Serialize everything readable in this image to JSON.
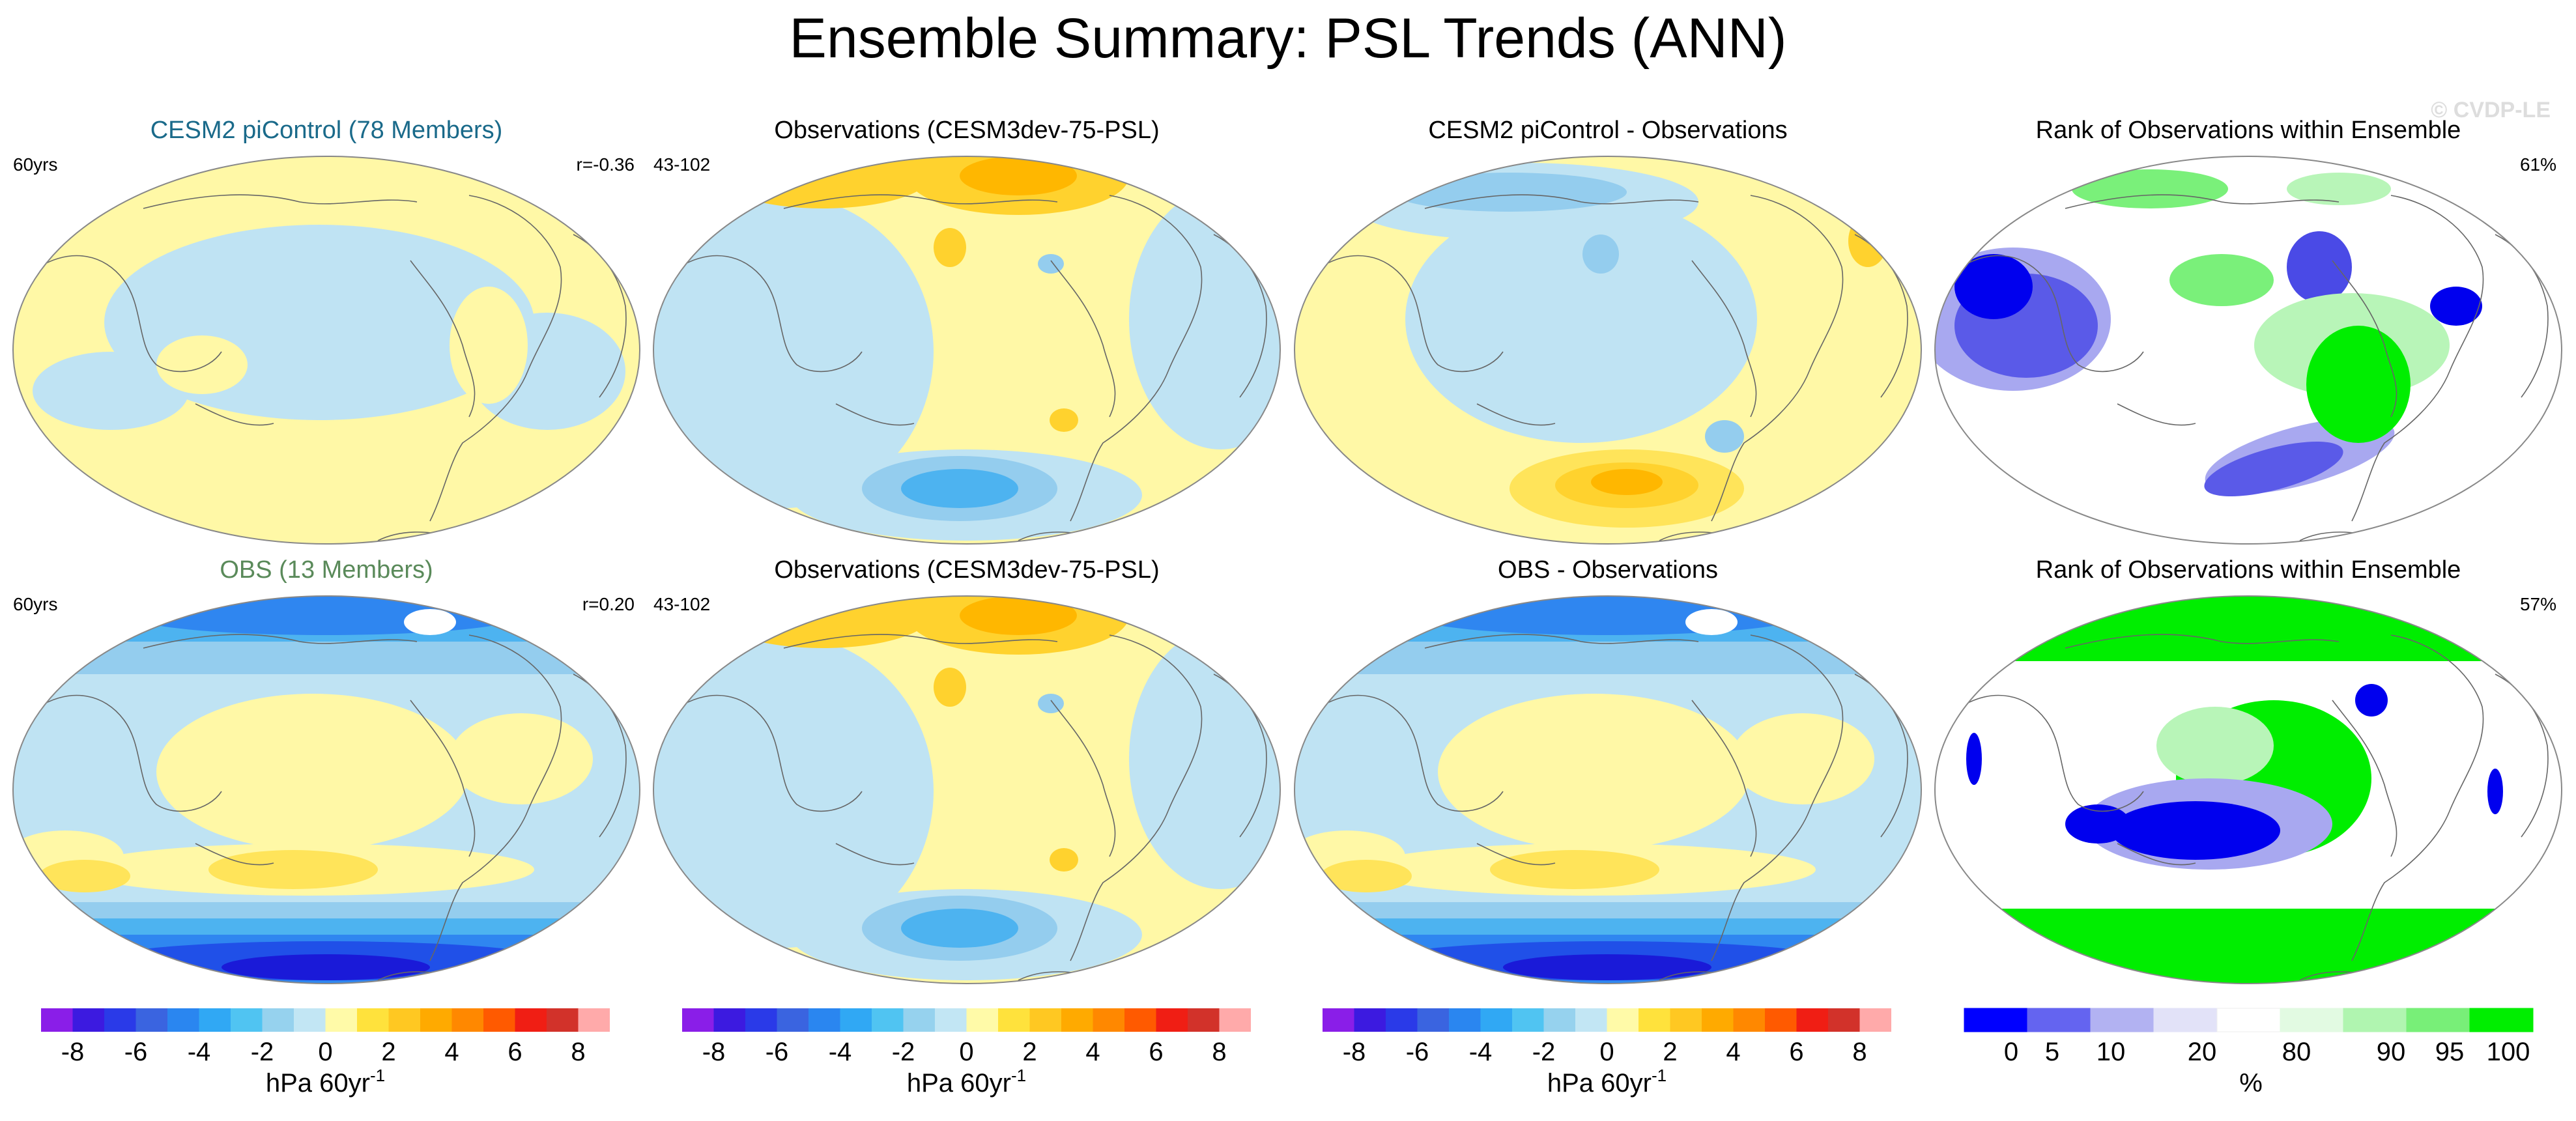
{
  "title": "Ensemble Summary: PSL Trends (ANN)",
  "watermark": "© CVDP-LE",
  "colors": {
    "pos1": "#fff8a6",
    "pos2": "#ffe45a",
    "pos3": "#ffd22e",
    "pos4": "#ffb700",
    "neg1": "#bfe3f3",
    "neg2": "#94cdee",
    "neg3": "#4db3f0",
    "neg4": "#2f86f0",
    "neg5": "#2050e8",
    "neg6": "#1a1ad8",
    "green_strong": "#00ee00",
    "green_light": "#b8f5b8",
    "blue_strong": "#0000ee",
    "blue_light": "#a8a8f0",
    "title_blue": "#1a6a8a",
    "title_green": "#5a8a5a",
    "land_outline": "#666666"
  },
  "panels": [
    {
      "id": "r1c1",
      "title": "CESM2 piControl (78 Members)",
      "title_color": "blue",
      "left_label": "60yrs",
      "right_label": "r=-0.36",
      "kind": "trend",
      "variant": "model_mean"
    },
    {
      "id": "r1c2",
      "title": "Observations (CESM3dev-75-PSL)",
      "left_label": "43-102",
      "right_label": "",
      "kind": "trend",
      "variant": "obs"
    },
    {
      "id": "r1c3",
      "title": "CESM2 piControl - Observations",
      "left_label": "",
      "right_label": "",
      "kind": "trend",
      "variant": "diff1"
    },
    {
      "id": "r1c4",
      "title": "Rank of Observations within Ensemble",
      "left_label": "",
      "right_label": "61%",
      "kind": "rank",
      "variant": "rank1"
    },
    {
      "id": "r2c1",
      "title": "OBS (13 Members)",
      "title_color": "green",
      "left_label": "60yrs",
      "right_label": "r=0.20",
      "kind": "trend",
      "variant": "obs_ens"
    },
    {
      "id": "r2c2",
      "title": "Observations (CESM3dev-75-PSL)",
      "left_label": "43-102",
      "right_label": "",
      "kind": "trend",
      "variant": "obs"
    },
    {
      "id": "r2c3",
      "title": "OBS - Observations",
      "left_label": "",
      "right_label": "",
      "kind": "trend",
      "variant": "diff2"
    },
    {
      "id": "r2c4",
      "title": "Rank of Observations within Ensemble",
      "left_label": "",
      "right_label": "57%",
      "kind": "rank",
      "variant": "rank2"
    }
  ],
  "trend_colorbar": {
    "colors": [
      "#8a1ee8",
      "#3c1ae0",
      "#2a3ae8",
      "#3a64e0",
      "#2a86f0",
      "#30a8f4",
      "#50c4f2",
      "#96d2ee",
      "#c2e6f4",
      "#fffaa8",
      "#ffe23c",
      "#ffc822",
      "#ffaa00",
      "#ff8800",
      "#ff5a00",
      "#f01e14",
      "#d2322a",
      "#ffaaaa"
    ],
    "tick_labels": [
      "-8",
      "-6",
      "-4",
      "-2",
      "0",
      "2",
      "4",
      "6",
      "8"
    ],
    "unit": "hPa 60yr",
    "unit_sup": "-1"
  },
  "rank_colorbar": {
    "colors": [
      "#0000ff",
      "#6464f0",
      "#b2b2f2",
      "#e2e2f8",
      "#ffffff",
      "#e2fae2",
      "#b0f5b0",
      "#78ef78",
      "#00ee00"
    ],
    "tick_labels": [
      "0",
      "5",
      "10",
      "20",
      "80",
      "90",
      "95",
      "100"
    ],
    "unit": "%"
  },
  "chart_data": [
    {
      "type": "heatmap",
      "title": "CESM2 piControl (78 Members)",
      "annotations": [
        "60yrs",
        "r=-0.36"
      ],
      "unit": "hPa 60yr-1",
      "color_levels": [
        -8,
        -7,
        -6,
        -5,
        -4,
        -3,
        -2,
        -1,
        -0.5,
        0,
        0.5,
        1,
        2,
        3,
        4,
        5,
        6,
        7,
        8
      ]
    },
    {
      "type": "heatmap",
      "title": "Observations (CESM3dev-75-PSL)",
      "annotations": [
        "43-102"
      ],
      "unit": "hPa 60yr-1"
    },
    {
      "type": "heatmap",
      "title": "CESM2 piControl - Observations",
      "unit": "hPa 60yr-1"
    },
    {
      "type": "heatmap",
      "title": "Rank of Observations within Ensemble",
      "annotations": [
        "61%"
      ],
      "unit": "%",
      "color_levels": [
        0,
        5,
        10,
        20,
        80,
        90,
        95,
        100
      ]
    },
    {
      "type": "heatmap",
      "title": "OBS (13 Members)",
      "annotations": [
        "60yrs",
        "r=0.20"
      ],
      "unit": "hPa 60yr-1"
    },
    {
      "type": "heatmap",
      "title": "Observations (CESM3dev-75-PSL)",
      "annotations": [
        "43-102"
      ],
      "unit": "hPa 60yr-1"
    },
    {
      "type": "heatmap",
      "title": "OBS - Observations",
      "unit": "hPa 60yr-1"
    },
    {
      "type": "heatmap",
      "title": "Rank of Observations within Ensemble",
      "annotations": [
        "57%"
      ],
      "unit": "%"
    }
  ]
}
